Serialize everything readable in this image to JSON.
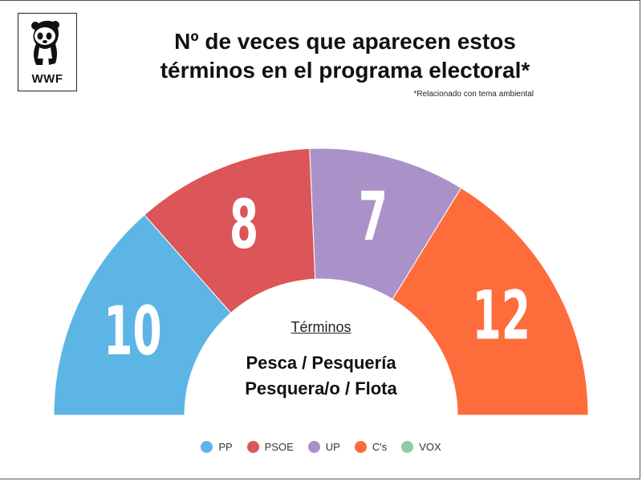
{
  "logo": {
    "text": "WWF"
  },
  "title_lines": [
    "Nº de veces que aparecen estos",
    "términos en el programa electoral*"
  ],
  "subtitle": "*Relacionado con tema ambiental",
  "center": {
    "label": "Términos",
    "terms_lines": [
      "Pesca / Pesquería",
      "Pesquera/o / Flota"
    ]
  },
  "chart_data": {
    "type": "pie",
    "shape": "semicircle-donut",
    "title": "Nº de veces que aparecen estos términos en el programa electoral*",
    "subtitle": "*Relacionado con tema ambiental",
    "series": [
      {
        "name": "PP",
        "value": 10,
        "color": "#5DB5E5"
      },
      {
        "name": "PSOE",
        "value": 8,
        "color": "#DC5558"
      },
      {
        "name": "UP",
        "value": 7,
        "color": "#AA92C9"
      },
      {
        "name": "C's",
        "value": 12,
        "color": "#FE6C3B"
      },
      {
        "name": "VOX",
        "value": 0,
        "color": "#8DCDA4"
      }
    ],
    "legend_position": "bottom"
  }
}
